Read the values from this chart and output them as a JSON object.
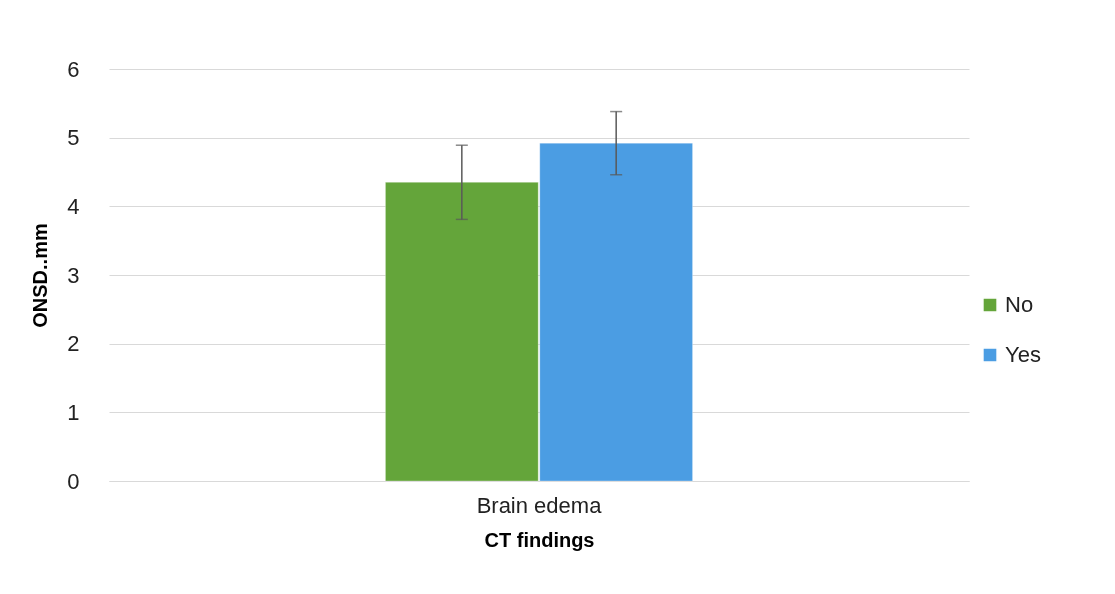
{
  "chart_data": {
    "type": "bar",
    "xlabel": "CT findings",
    "ylabel": "ONSD..mm",
    "categories": [
      "Brain edema"
    ],
    "series": [
      {
        "name": "No",
        "color": "#64a53a",
        "values": [
          4.35
        ],
        "errors": [
          0.54
        ]
      },
      {
        "name": "Yes",
        "color": "#4b9de3",
        "values": [
          4.92
        ],
        "errors": [
          0.46
        ]
      }
    ],
    "ylim": [
      0,
      6
    ],
    "yticks": [
      0,
      1,
      2,
      3,
      4,
      5,
      6
    ],
    "grid": "y",
    "legend": "right"
  }
}
